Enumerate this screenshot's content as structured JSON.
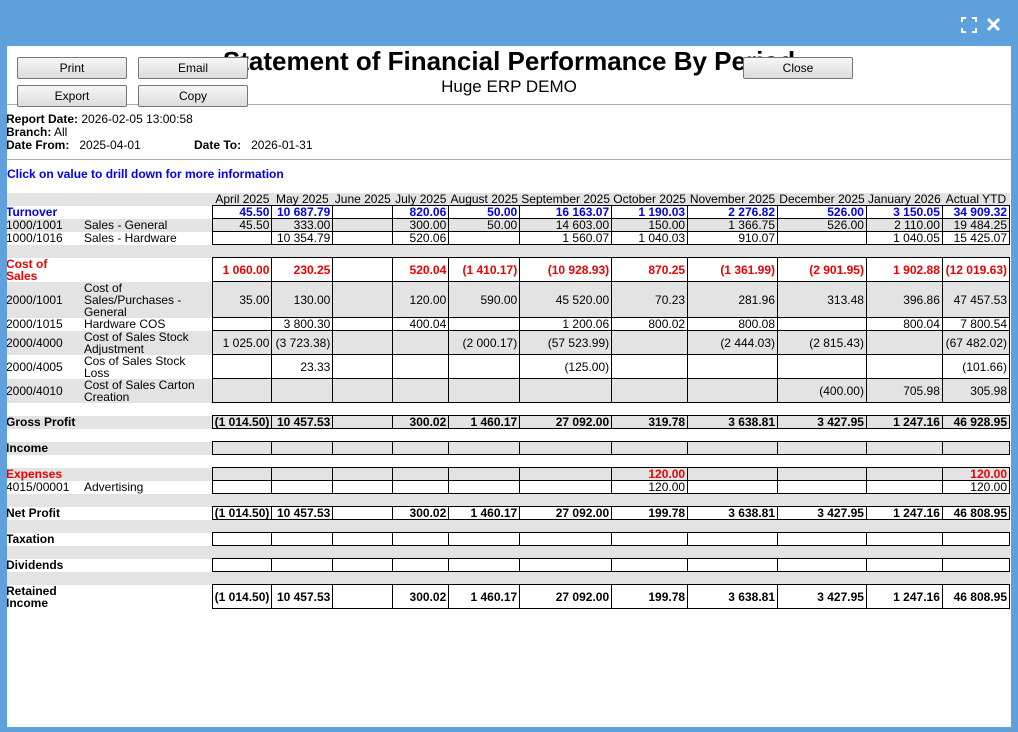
{
  "buttons": {
    "print": "Print",
    "email": "Email",
    "close": "Close",
    "export": "Export",
    "copy": "Copy"
  },
  "header": {
    "title": "Statement of Financial Performance By Period",
    "subtitle": "Huge ERP DEMO"
  },
  "report": {
    "report_date": {
      "label": "Report Date:",
      "value": "2026-02-05 13:00:58"
    },
    "branch": {
      "label": "Branch:",
      "value": "All"
    },
    "date_from": {
      "label": "Date From:",
      "value": "2025-04-01"
    },
    "date_to": {
      "label": "Date To:",
      "value": "2026-01-31"
    }
  },
  "note": "Click on value to drill down for more information",
  "table": {
    "columns": [
      "April 2025",
      "May 2025",
      "June 2025",
      "July 2025",
      "August 2025",
      "September 2025",
      "October 2025",
      "November 2025",
      "December 2025",
      "January 2026",
      "Actual YTD"
    ],
    "rows": [
      {
        "label": "Turnover",
        "color": "#0000ee",
        "bold": true,
        "values": [
          "45.50",
          "10 687.79",
          null,
          "820.06",
          "50.00",
          "16 163.07",
          "1 190.03",
          "2 276.82",
          "526.00",
          "3 150.05",
          "34 909.32"
        ]
      },
      {
        "code": "1000/1001",
        "name": "Sales - General",
        "values": [
          "45.50",
          "333.00",
          null,
          "300.00",
          "50.00",
          "14 603.00",
          "150.00",
          "1 366.75",
          "526.00",
          "2 110.00",
          "19 484.25"
        ]
      },
      {
        "code": "1000/1016",
        "name": "Sales - Hardware",
        "values": [
          null,
          "10 354.79",
          null,
          "520.06",
          null,
          "1 560.07",
          "1 040.03",
          "910.07",
          null,
          "1 040.05",
          "15 425.07"
        ]
      },
      {
        "label": "Cost of Sales",
        "color": "#ee0000",
        "bold": true,
        "values": [
          "1 060.00",
          "230.25",
          null,
          "520.04",
          "(1 410.17)",
          "(10 928.93)",
          "870.25",
          "(1 361.99)",
          "(2 901.95)",
          "1 902.88",
          "(12 019.63)"
        ]
      },
      {
        "code": "2000/1001",
        "name": "Cost of Sales/Purchases - General",
        "values": [
          "35.00",
          "130.00",
          null,
          "120.00",
          "590.00",
          "45 520.00",
          "70.23",
          "281.96",
          "313.48",
          "396.86",
          "47 457.53"
        ]
      },
      {
        "code": "2000/1015",
        "name": "Hardware COS",
        "values": [
          null,
          "3 800.30",
          null,
          "400.04",
          null,
          "1 200.06",
          "800.02",
          "800.08",
          null,
          "800.04",
          "7 800.54"
        ]
      },
      {
        "code": "2000/4000",
        "name": "Cost of Sales Stock Adjustment",
        "values": [
          "1 025.00",
          "(3 723.38)",
          null,
          null,
          "(2 000.17)",
          "(57 523.99)",
          null,
          "(2 444.03)",
          "(2 815.43)",
          null,
          "(67 482.02)"
        ]
      },
      {
        "code": "2000/4005",
        "name": "Cos of Sales Stock Loss",
        "values": [
          null,
          "23.33",
          null,
          null,
          null,
          "(125.00)",
          null,
          null,
          null,
          null,
          "(101.66)"
        ]
      },
      {
        "code": "2000/4010",
        "name": "Cost of Sales Carton Creation",
        "values": [
          null,
          null,
          null,
          null,
          null,
          null,
          null,
          null,
          "(400.00)",
          "705.98",
          "305.98"
        ]
      },
      {
        "label": "Gross Profit",
        "bold": true,
        "values": [
          "(1 014.50)",
          "10 457.53",
          null,
          "300.02",
          "1 460.17",
          "27 092.00",
          "319.78",
          "3 638.81",
          "3 427.95",
          "1 247.16",
          "46 928.95"
        ]
      },
      {
        "label": "Income",
        "bold": true,
        "values": [
          null,
          null,
          null,
          null,
          null,
          null,
          null,
          null,
          null,
          null,
          null
        ]
      },
      {
        "label": "Expenses",
        "color": "#ee0000",
        "bold": true,
        "values": [
          null,
          null,
          null,
          null,
          null,
          null,
          "120.00",
          null,
          null,
          null,
          "120.00"
        ]
      },
      {
        "code": "4015/00001",
        "name": "Advertising",
        "values": [
          null,
          null,
          null,
          null,
          null,
          null,
          "120.00",
          null,
          null,
          null,
          "120.00"
        ]
      },
      {
        "label": "Net Profit",
        "bold": true,
        "values": [
          "(1 014.50)",
          "10 457.53",
          null,
          "300.02",
          "1 460.17",
          "27 092.00",
          "199.78",
          "3 638.81",
          "3 427.95",
          "1 247.16",
          "46 808.95"
        ]
      },
      {
        "label": "Taxation",
        "bold": true,
        "values": [
          null,
          null,
          null,
          null,
          null,
          null,
          null,
          null,
          null,
          null,
          null
        ]
      },
      {
        "label": "Dividends",
        "bold": true,
        "values": [
          null,
          null,
          null,
          null,
          null,
          null,
          null,
          null,
          null,
          null,
          null
        ]
      },
      {
        "label": "Retained Income",
        "bold": true,
        "values": [
          "(1 014.50)",
          "10 457.53",
          null,
          "300.02",
          "1 460.17",
          "27 092.00",
          "199.78",
          "3 638.81",
          "3 427.95",
          "1 247.16",
          "46 808.95"
        ]
      }
    ]
  }
}
